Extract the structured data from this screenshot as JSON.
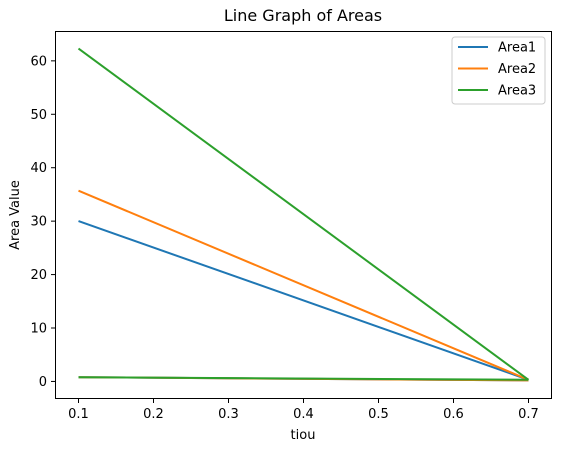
{
  "chart_data": {
    "type": "line",
    "title": "Line Graph of Areas",
    "xlabel": "tiou",
    "ylabel": "Area Value",
    "xlim": [
      0.07,
      0.73
    ],
    "ylim": [
      -3.1,
      65.4
    ],
    "xticks": [
      0.1,
      0.2,
      0.3,
      0.4,
      0.5,
      0.6,
      0.7
    ],
    "xtick_labels": [
      "0.1",
      "0.2",
      "0.3",
      "0.4",
      "0.5",
      "0.6",
      "0.7"
    ],
    "yticks": [
      0,
      10,
      20,
      30,
      40,
      50,
      60
    ],
    "ytick_labels": [
      "0",
      "10",
      "20",
      "30",
      "40",
      "50",
      "60"
    ],
    "grid": false,
    "legend_position": "top-right",
    "series": [
      {
        "name": "Area1",
        "color": "#1f77b4",
        "segments": [
          {
            "x": [
              0.1,
              0.7
            ],
            "y": [
              30.0,
              0.3
            ]
          },
          {
            "x": [
              0.1,
              0.7
            ],
            "y": [
              0.8,
              0.2
            ]
          }
        ]
      },
      {
        "name": "Area2",
        "color": "#ff7f0e",
        "segments": [
          {
            "x": [
              0.1,
              0.7
            ],
            "y": [
              35.7,
              0.3
            ]
          },
          {
            "x": [
              0.1,
              0.7
            ],
            "y": [
              0.8,
              0.2
            ]
          }
        ]
      },
      {
        "name": "Area3",
        "color": "#2ca02c",
        "segments": [
          {
            "x": [
              0.1,
              0.7
            ],
            "y": [
              62.3,
              0.3
            ]
          },
          {
            "x": [
              0.1,
              0.7
            ],
            "y": [
              0.8,
              0.3
            ]
          }
        ]
      }
    ]
  }
}
